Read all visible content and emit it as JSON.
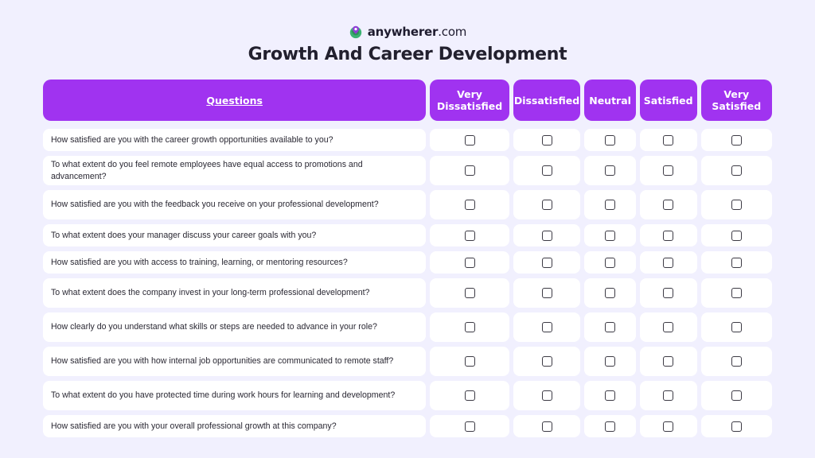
{
  "brand": {
    "name_bold": "anywherer",
    "name_rest": ".com",
    "logo_icon": "globe-pin-icon",
    "colors": {
      "logo_green": "#3BB273",
      "logo_purple": "#8E3FD6"
    }
  },
  "title": "Growth And Career Development",
  "colors": {
    "accent": "#A033F0",
    "background": "#F1F0FE",
    "row_bg": "#FFFFFF"
  },
  "table": {
    "headers": {
      "question": "Questions",
      "very_dissatisfied": "Very Dissatisfied",
      "dissatisfied": "Dissatisfied",
      "neutral": "Neutral",
      "satisfied": "Satisfied",
      "very_satisfied": "Very Satisfied"
    },
    "rows": [
      {
        "question": "How satisfied are you with the career growth opportunities available to you?"
      },
      {
        "question": "To what extent do you feel remote employees have equal access to promotions and advancement?"
      },
      {
        "question": "How satisfied are you with the feedback you receive on your professional development?"
      },
      {
        "question": "To what extent does your manager discuss your career goals with you?"
      },
      {
        "question": "How satisfied are you with access to training, learning, or mentoring resources?"
      },
      {
        "question": "To what extent does the company invest in your long-term professional development?"
      },
      {
        "question": "How clearly do you understand what skills or steps are needed to advance in your role?"
      },
      {
        "question": "How satisfied are you with how internal job opportunities are communicated to remote staff?"
      },
      {
        "question": "To what extent do you have protected time during work hours for learning and development?"
      },
      {
        "question": "How satisfied are you with your overall professional growth at this company?"
      }
    ]
  }
}
